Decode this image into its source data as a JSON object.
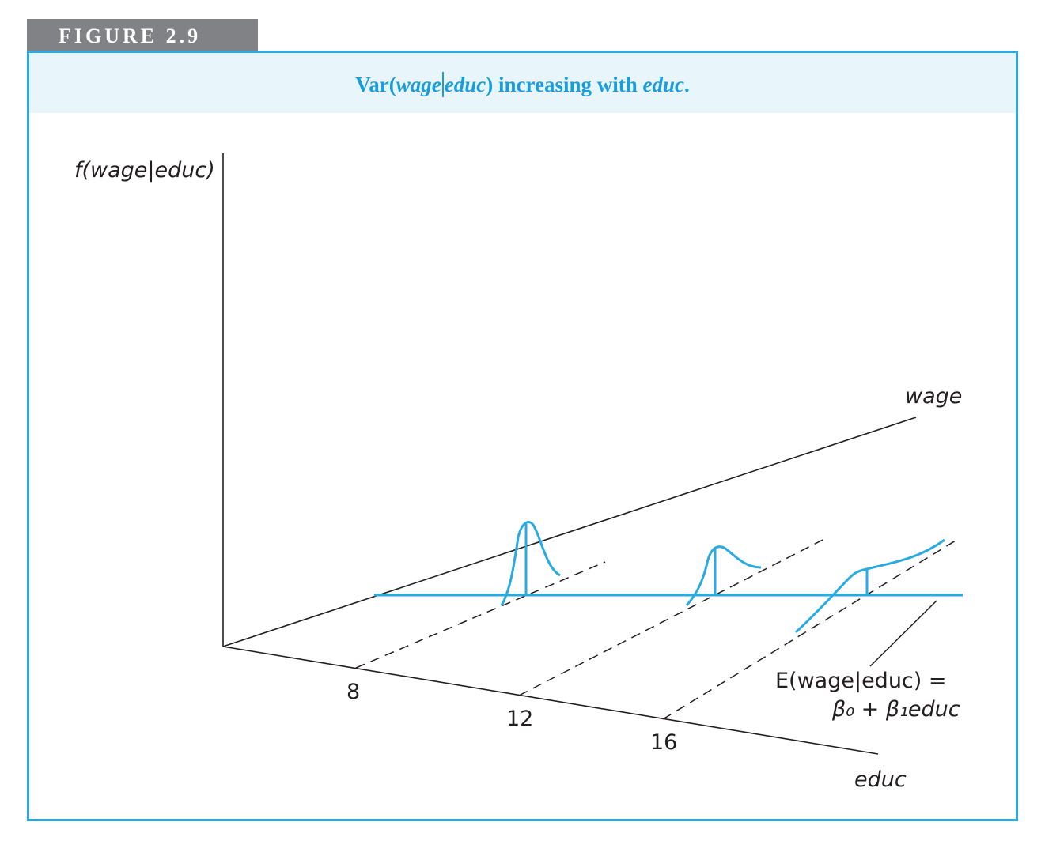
{
  "figure_label": "FIGURE 2.9",
  "title": {
    "prefix": "Var(",
    "var1": "wage",
    "var2": "educ",
    "middle": ") increasing with ",
    "var3": "educ",
    "suffix": "."
  },
  "axes": {
    "y_label": "f(wage|educ)",
    "wage_label": "wage",
    "educ_label": "educ"
  },
  "ticks": [
    "8",
    "12",
    "16"
  ],
  "regression_label": {
    "line1": "E(wage|educ) =",
    "line2": "β₀ + β₁educ"
  },
  "colors": {
    "accent": "#29abe2",
    "caption_band": "#e8f6fc",
    "tab": "#808285",
    "ink": "#231f20"
  }
}
